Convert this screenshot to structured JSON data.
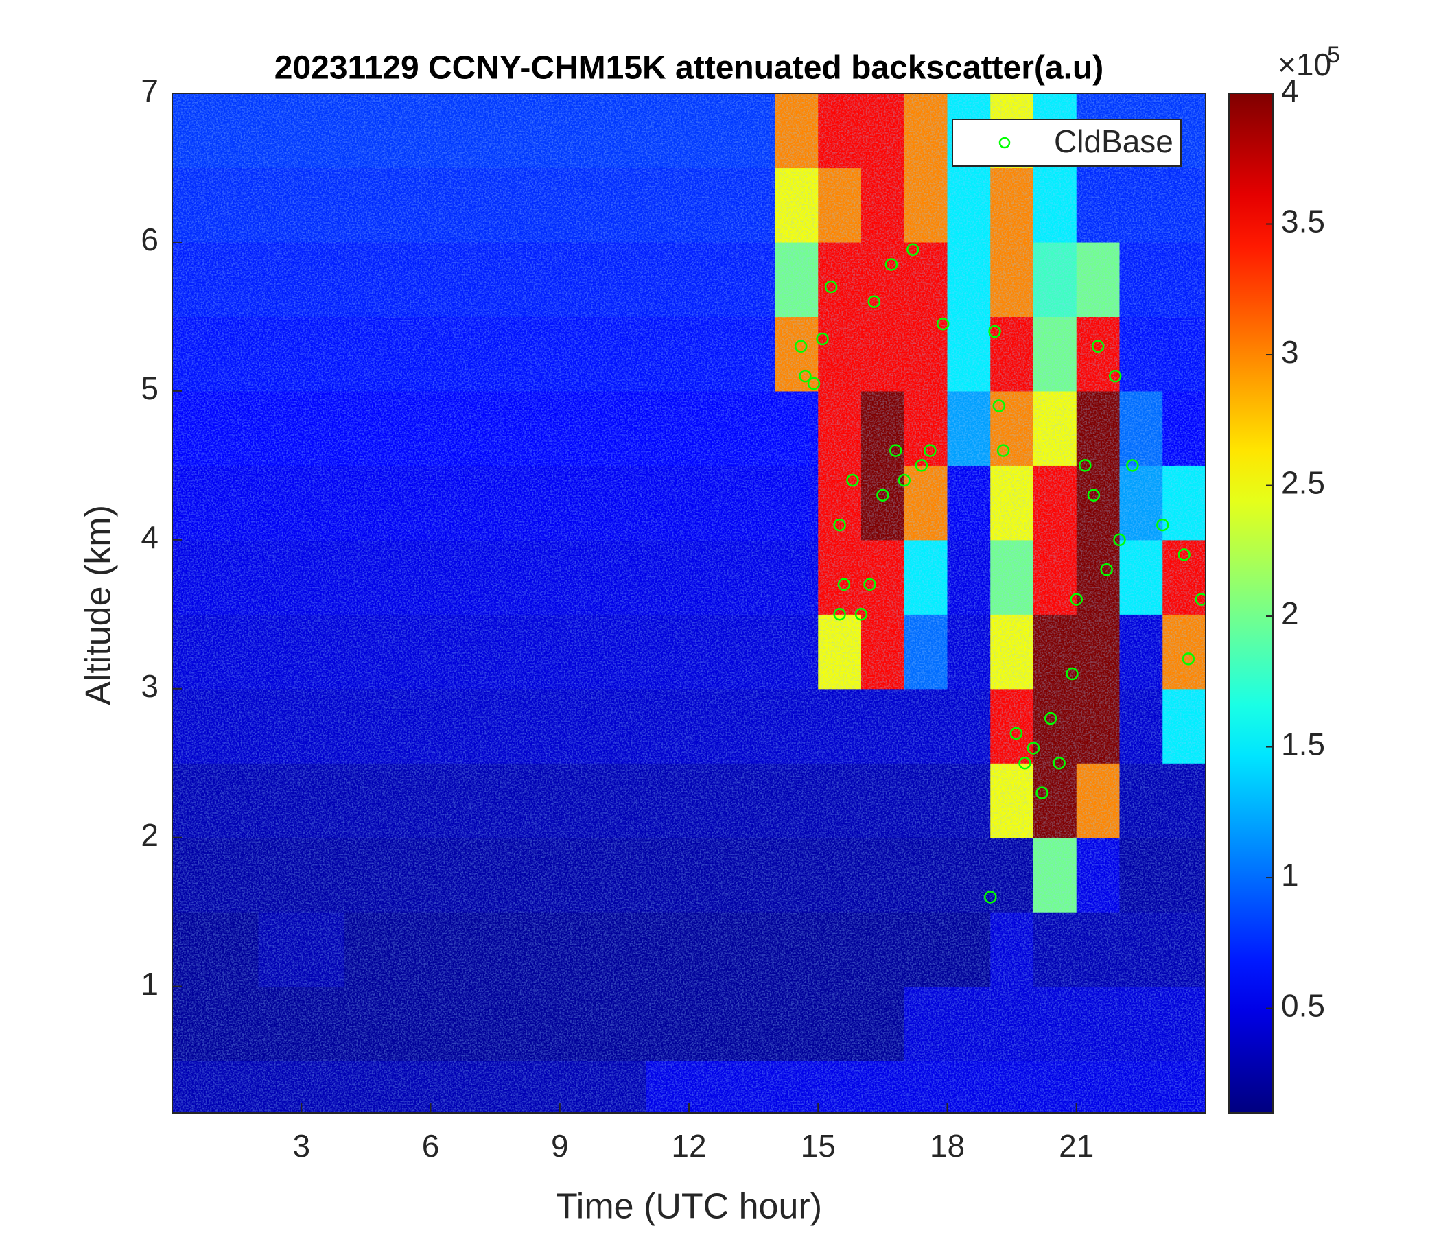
{
  "chart_data": {
    "type": "heatmap",
    "title": "20231129 CCNY-CHM15K attenuated backscatter(a.u)",
    "x_label": "Time (UTC hour)",
    "y_label": "Altitude (km)",
    "xlim": [
      0,
      24
    ],
    "xticks": [
      3,
      6,
      9,
      12,
      15,
      18,
      21
    ],
    "ylim": [
      0.15,
      7
    ],
    "yticks": [
      1,
      2,
      3,
      4,
      5,
      6,
      7
    ],
    "x_edges": [
      0,
      1,
      2,
      3,
      4,
      5,
      6,
      7,
      8,
      9,
      10,
      11,
      12,
      13,
      14,
      15,
      16,
      17,
      18,
      19,
      20,
      21,
      22,
      23,
      24
    ],
    "y_edges": [
      0.15,
      0.5,
      1,
      1.5,
      2,
      2.5,
      3,
      3.5,
      4,
      4.5,
      5,
      5.5,
      6,
      6.5,
      7
    ],
    "z": [
      [
        0.3,
        0.3,
        0.3,
        0.3,
        0.3,
        0.3,
        0.3,
        0.3,
        0.3,
        0.3,
        0.3,
        0.5,
        0.5,
        0.5,
        0.5,
        0.5,
        0.5,
        0.5,
        0.5,
        0.5,
        0.5,
        0.5,
        0.5,
        0.5
      ],
      [
        0.2,
        0.2,
        0.2,
        0.2,
        0.2,
        0.2,
        0.2,
        0.2,
        0.2,
        0.2,
        0.2,
        0.2,
        0.2,
        0.2,
        0.2,
        0.2,
        0.2,
        0.45,
        0.45,
        0.45,
        0.45,
        0.45,
        0.45,
        0.45
      ],
      [
        0.2,
        0.2,
        0.3,
        0.3,
        0.2,
        0.2,
        0.2,
        0.2,
        0.2,
        0.2,
        0.2,
        0.2,
        0.2,
        0.2,
        0.2,
        0.2,
        0.2,
        0.2,
        0.2,
        0.45,
        0.3,
        0.3,
        0.3,
        0.3
      ],
      [
        0.25,
        0.25,
        0.25,
        0.25,
        0.25,
        0.25,
        0.25,
        0.25,
        0.25,
        0.25,
        0.25,
        0.25,
        0.25,
        0.25,
        0.25,
        0.25,
        0.25,
        0.25,
        0.25,
        0.25,
        2.0,
        0.5,
        0.25,
        0.25
      ],
      [
        0.3,
        0.3,
        0.3,
        0.3,
        0.3,
        0.3,
        0.3,
        0.3,
        0.3,
        0.3,
        0.3,
        0.3,
        0.3,
        0.3,
        0.3,
        0.3,
        0.3,
        0.3,
        0.3,
        2.5,
        4,
        3,
        0.3,
        0.3
      ],
      [
        0.4,
        0.4,
        0.4,
        0.4,
        0.4,
        0.4,
        0.4,
        0.4,
        0.4,
        0.4,
        0.4,
        0.4,
        0.4,
        0.4,
        0.4,
        0.4,
        0.4,
        0.4,
        0.4,
        3.5,
        4,
        4,
        0.4,
        1.5
      ],
      [
        0.45,
        0.45,
        0.45,
        0.45,
        0.45,
        0.45,
        0.45,
        0.45,
        0.45,
        0.45,
        0.45,
        0.45,
        0.45,
        0.45,
        0.45,
        2.5,
        3.5,
        1.0,
        0.45,
        2.5,
        4,
        4,
        0.45,
        3
      ],
      [
        0.5,
        0.5,
        0.5,
        0.5,
        0.5,
        0.5,
        0.5,
        0.5,
        0.5,
        0.5,
        0.5,
        0.5,
        0.5,
        0.5,
        0.5,
        3.5,
        3.5,
        1.5,
        0.5,
        2,
        3.5,
        4,
        1.5,
        3.5
      ],
      [
        0.55,
        0.55,
        0.55,
        0.55,
        0.55,
        0.55,
        0.55,
        0.55,
        0.55,
        0.55,
        0.55,
        0.55,
        0.55,
        0.55,
        0.55,
        3.5,
        4,
        3,
        0.55,
        2.5,
        3.5,
        4,
        1.2,
        1.5
      ],
      [
        0.6,
        0.6,
        0.6,
        0.6,
        0.6,
        0.6,
        0.6,
        0.6,
        0.6,
        0.6,
        0.6,
        0.6,
        0.6,
        0.6,
        0.6,
        3.5,
        4,
        3.5,
        1.2,
        3,
        2.5,
        4,
        1.0,
        0.6
      ],
      [
        0.65,
        0.65,
        0.65,
        0.65,
        0.65,
        0.65,
        0.65,
        0.65,
        0.65,
        0.65,
        0.65,
        0.65,
        0.65,
        0.65,
        3,
        3.5,
        3.5,
        3.5,
        1.5,
        3.5,
        2,
        3.5,
        0.65,
        0.65
      ],
      [
        0.7,
        0.7,
        0.7,
        0.7,
        0.7,
        0.7,
        0.7,
        0.7,
        0.7,
        0.7,
        0.7,
        0.7,
        0.7,
        0.7,
        2,
        3.5,
        3.5,
        3.5,
        1.5,
        3,
        1.8,
        2,
        0.7,
        0.7
      ],
      [
        0.75,
        0.75,
        0.75,
        0.75,
        0.75,
        0.75,
        0.75,
        0.75,
        0.75,
        0.75,
        0.75,
        0.75,
        0.75,
        0.75,
        2.5,
        3,
        3.5,
        3,
        1.5,
        3,
        1.5,
        0.75,
        0.75,
        0.75
      ],
      [
        0.8,
        0.8,
        0.8,
        0.8,
        0.8,
        0.8,
        0.8,
        0.8,
        0.8,
        0.8,
        0.8,
        0.8,
        0.8,
        0.8,
        3,
        3.5,
        3.5,
        3,
        1.5,
        2.5,
        1.5,
        0.8,
        0.8,
        0.8
      ]
    ],
    "colormap": "jet",
    "clim": [
      0.1,
      4
    ],
    "colorbar_ticks": [
      0.5,
      1,
      1.5,
      2,
      2.5,
      3,
      3.5,
      4
    ],
    "colorbar_multiplier": {
      "base": "×10",
      "exponent": 5
    },
    "legend": "upper right",
    "series": [
      {
        "type": "scatter",
        "name": "CldBase",
        "color": "#00ff00",
        "x": [
          14.6,
          14.7,
          14.9,
          15.1,
          15.3,
          15.5,
          15.6,
          15.5,
          15.8,
          16.0,
          16.2,
          16.3,
          16.5,
          16.7,
          16.8,
          17.0,
          17.2,
          17.4,
          17.6,
          17.9,
          19.0,
          19.1,
          19.2,
          19.3,
          19.6,
          19.8,
          20.0,
          20.2,
          20.4,
          20.6,
          20.9,
          21.0,
          21.2,
          21.4,
          21.5,
          21.7,
          21.9,
          22.0,
          22.3,
          23.0,
          23.5,
          23.9,
          23.6
        ],
        "y": [
          5.3,
          5.1,
          5.05,
          5.35,
          5.7,
          4.1,
          3.7,
          3.5,
          4.4,
          3.5,
          3.7,
          5.6,
          4.3,
          5.85,
          4.6,
          4.4,
          5.95,
          4.5,
          4.6,
          5.45,
          1.6,
          5.4,
          4.9,
          4.6,
          2.7,
          2.5,
          2.6,
          2.3,
          2.8,
          2.5,
          3.1,
          3.6,
          4.5,
          4.3,
          5.3,
          3.8,
          5.1,
          4.0,
          4.5,
          4.1,
          3.9,
          3.6,
          3.2
        ]
      }
    ]
  }
}
